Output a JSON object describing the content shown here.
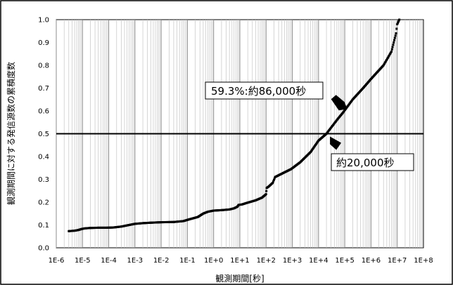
{
  "chart_data": {
    "type": "scatter",
    "xlabel": "観測期間[秒]",
    "ylabel": "観測期間に対する発信源数の累積度数",
    "x_scale": "log",
    "xlim": [
      1e-06,
      100000000.0
    ],
    "ylim": [
      0,
      1.0
    ],
    "x_ticks": [
      "1E-6",
      "1E-5",
      "1E-4",
      "1E-3",
      "1E-2",
      "1E-1",
      "1E+0",
      "1E+1",
      "1E+2",
      "1E+3",
      "1E+4",
      "1E+5",
      "1E+6",
      "1E+7",
      "1E+8"
    ],
    "y_ticks": [
      "0.0",
      "0.1",
      "0.2",
      "0.3",
      "0.4",
      "0.5",
      "0.6",
      "0.7",
      "0.8",
      "0.9",
      "1.0"
    ],
    "grid": "vertical log grid",
    "reference_line": {
      "y": 0.5
    },
    "annotations": [
      {
        "text": "59.3%:約86,000秒",
        "x": 86000,
        "y": 0.593
      },
      {
        "text": "約20,000秒",
        "x": 20000,
        "y": 0.5
      }
    ],
    "series": [
      {
        "color": "#000000",
        "points": [
          [
            3e-06,
            0.073
          ],
          [
            5e-06,
            0.075
          ],
          [
            7e-06,
            0.078
          ],
          [
            9e-06,
            0.082
          ],
          [
            1.2e-05,
            0.085
          ],
          [
            2e-05,
            0.087
          ],
          [
            4e-05,
            0.088
          ],
          [
            8e-05,
            0.088
          ],
          [
            0.00015,
            0.089
          ],
          [
            0.0003,
            0.093
          ],
          [
            0.0006,
            0.1
          ],
          [
            0.001,
            0.105
          ],
          [
            0.002,
            0.108
          ],
          [
            0.004,
            0.11
          ],
          [
            0.01,
            0.112
          ],
          [
            0.03,
            0.113
          ],
          [
            0.07,
            0.117
          ],
          [
            0.12,
            0.125
          ],
          [
            0.25,
            0.135
          ],
          [
            0.4,
            0.15
          ],
          [
            0.6,
            0.158
          ],
          [
            1.0,
            0.163
          ],
          [
            2.0,
            0.165
          ],
          [
            4.0,
            0.168
          ],
          [
            6.0,
            0.173
          ],
          [
            8.0,
            0.18
          ],
          [
            9.0,
            0.188
          ],
          [
            12,
            0.19
          ],
          [
            20,
            0.198
          ],
          [
            40,
            0.208
          ],
          [
            70,
            0.22
          ],
          [
            100,
            0.235
          ],
          [
            105,
            0.262
          ],
          [
            130,
            0.27
          ],
          [
            180,
            0.285
          ],
          [
            220,
            0.31
          ],
          [
            400,
            0.325
          ],
          [
            900,
            0.345
          ],
          [
            2000,
            0.375
          ],
          [
            5000,
            0.42
          ],
          [
            10000,
            0.47
          ],
          [
            20000,
            0.5
          ],
          [
            50000,
            0.56
          ],
          [
            86000,
            0.593
          ],
          [
            200000,
            0.65
          ],
          [
            500000,
            0.7
          ],
          [
            1000000.0,
            0.74
          ],
          [
            3000000.0,
            0.8
          ],
          [
            6000000.0,
            0.86
          ],
          [
            9000000.0,
            0.94
          ],
          [
            10000000.0,
            0.98
          ],
          [
            12000000.0,
            1.0
          ]
        ]
      }
    ]
  }
}
